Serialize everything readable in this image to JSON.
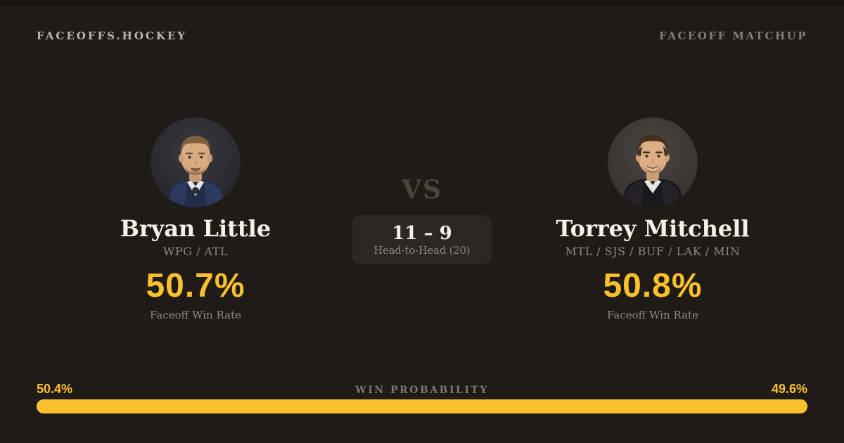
{
  "header": {
    "brand": "FACEOFFS.HOCKEY",
    "matchup_label": "FACEOFF MATCHUP"
  },
  "players": {
    "left": {
      "name": "Bryan Little",
      "teams": "WPG / ATL",
      "win_rate": "50.7%",
      "win_rate_label": "Faceoff Win Rate"
    },
    "right": {
      "name": "Torrey Mitchell",
      "teams": "MTL / SJS / BUF / LAK / MIN",
      "win_rate": "50.8%",
      "win_rate_label": "Faceoff Win Rate"
    }
  },
  "center": {
    "vs_label": "VS",
    "head_to_head_score": "11 – 9",
    "head_to_head_label": "Head-to-Head (20)"
  },
  "win_probability": {
    "title": "WIN PROBABILITY",
    "left_label": "50.4%",
    "right_label": "49.6%",
    "left_value": 50.4,
    "right_value": 49.6
  },
  "colors": {
    "background": "#1f1b17",
    "accent": "#fbc02d",
    "text_primary": "#f4f0ea",
    "text_muted": "#8d8781"
  }
}
